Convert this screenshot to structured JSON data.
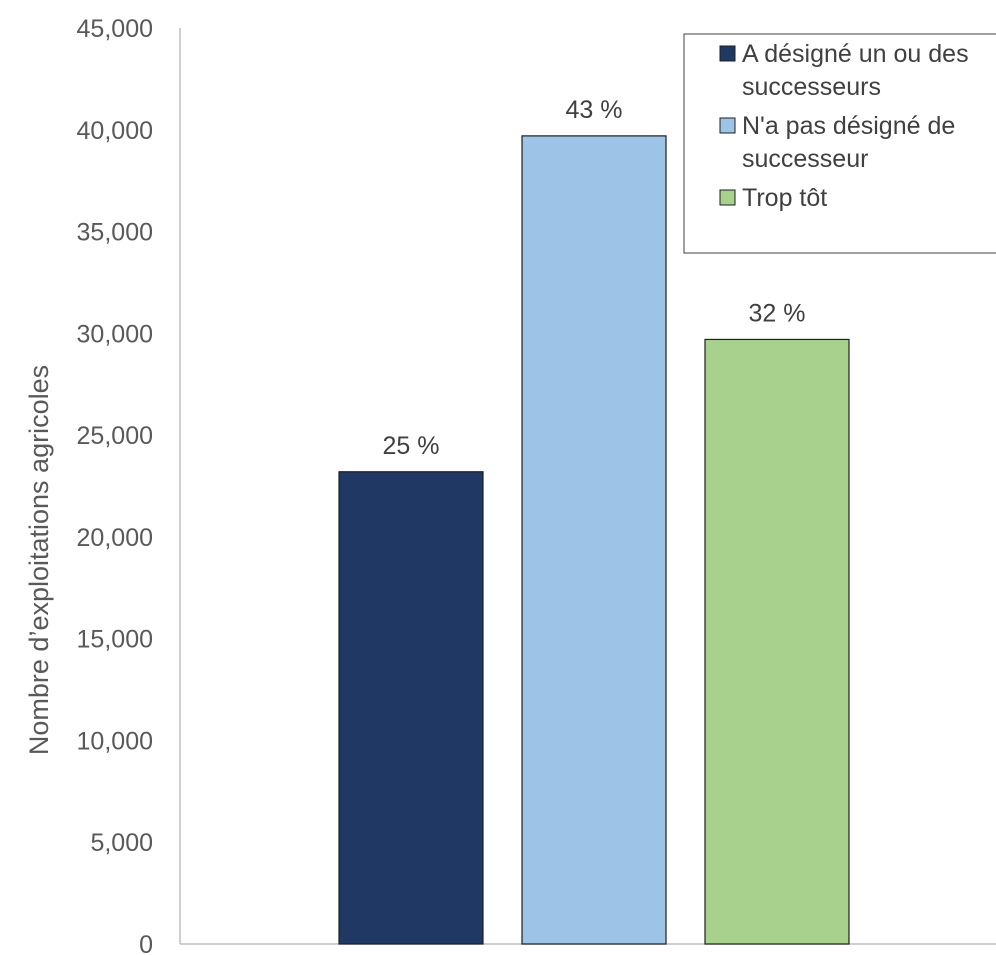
{
  "chart_data": {
    "type": "bar",
    "title": "",
    "xlabel": "",
    "ylabel": "Nombre d’exploitations agricoles",
    "ylim": [
      0,
      45000
    ],
    "yticks": [
      0,
      5000,
      10000,
      15000,
      20000,
      25000,
      30000,
      35000,
      40000,
      45000
    ],
    "ytick_labels": [
      "0",
      "5,000",
      "10,000",
      "15,000",
      "20,000",
      "25,000",
      "30,000",
      "35,000",
      "40,000",
      "45,000"
    ],
    "grid": false,
    "legend_position": "top-right",
    "series": [
      {
        "name": "A désigné un ou des successeurs",
        "value": 23200,
        "label": "25 %",
        "color": "#203864",
        "legend_lines": [
          "A désigné un ou des",
          "successeurs"
        ]
      },
      {
        "name": "N'a pas désigné de successeur",
        "value": 39700,
        "label": "43 %",
        "color": "#9DC3E6",
        "legend_lines": [
          "N'a pas désigné de",
          "successeur"
        ]
      },
      {
        "name": "Trop tôt",
        "value": 29700,
        "label": "32 %",
        "color": "#A9D18E",
        "legend_lines": [
          "Trop tôt"
        ]
      }
    ]
  }
}
